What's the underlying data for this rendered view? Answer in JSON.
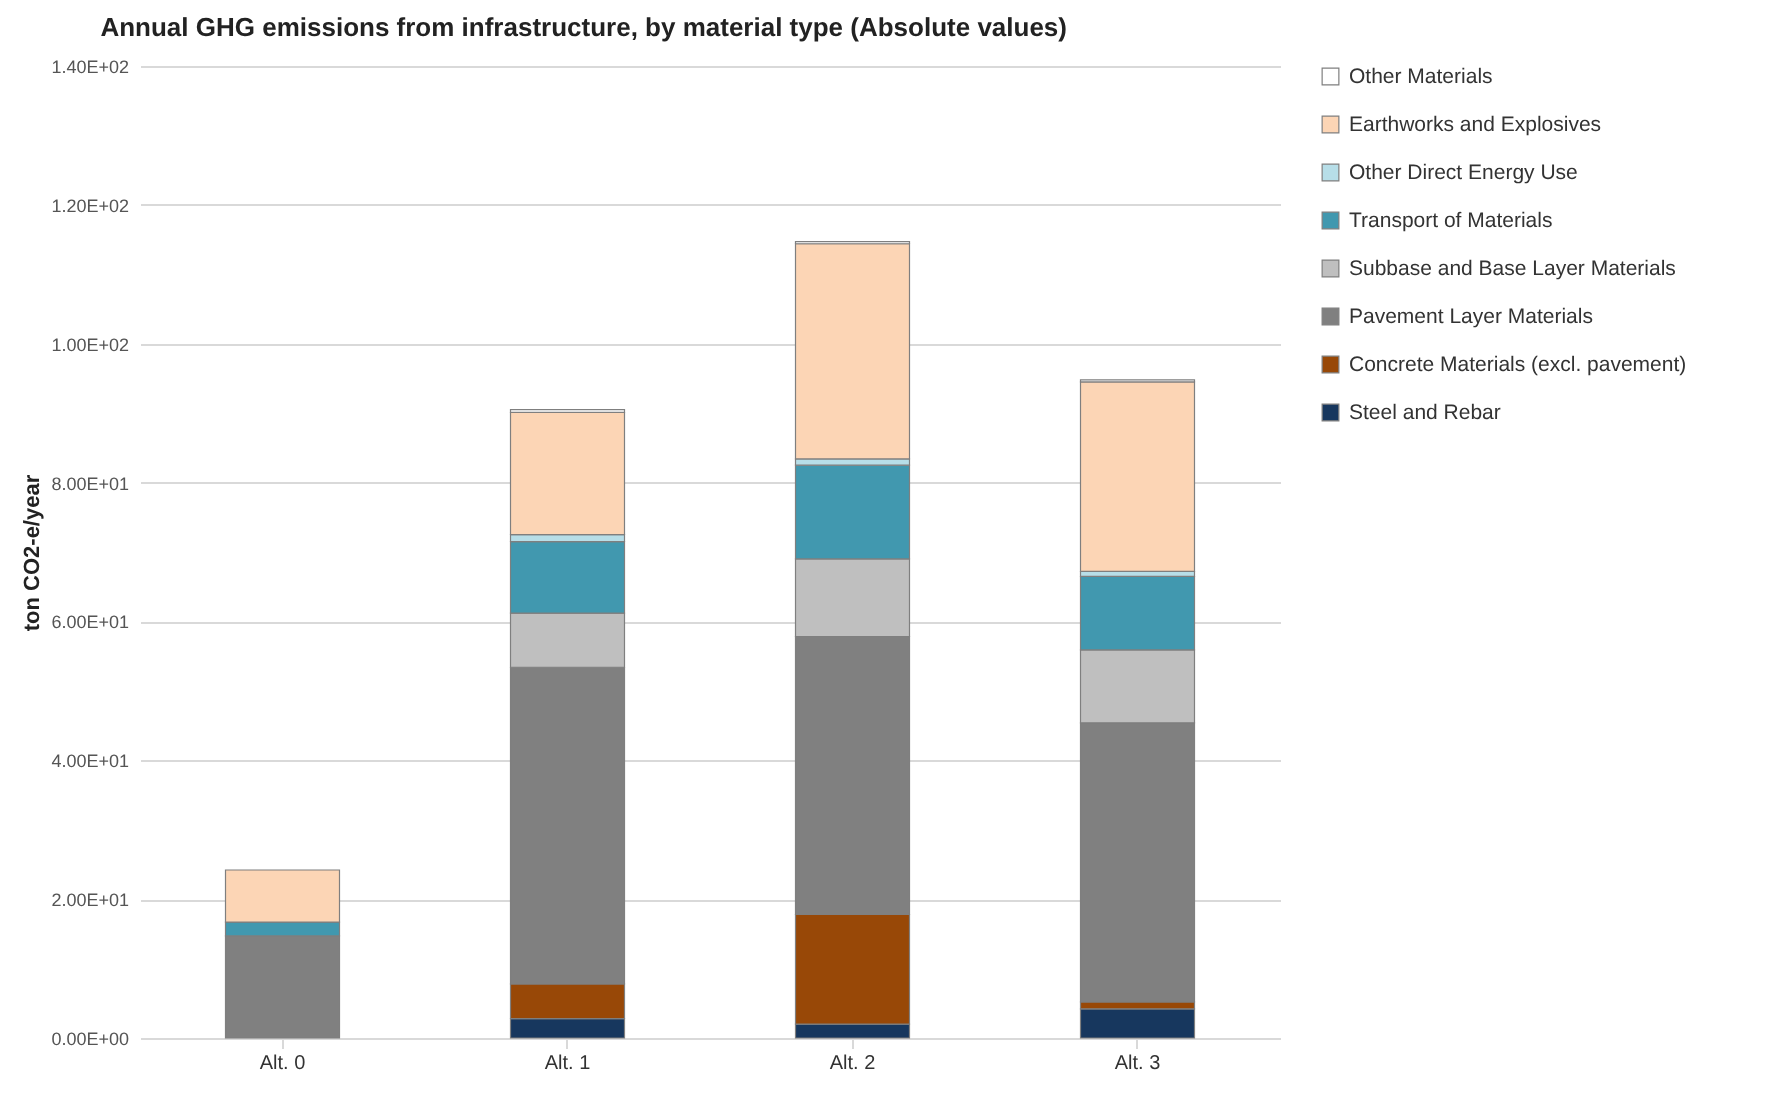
{
  "chart_data": {
    "type": "bar",
    "title": "Annual GHG emissions from infrastructure, by material type (Absolute values)",
    "ylabel": "ton CO2-e/year",
    "categories": [
      "Alt. 0",
      "Alt. 1",
      "Alt. 2",
      "Alt. 3"
    ],
    "stacked": true,
    "legend": "right",
    "grid": "y",
    "ylim": [
      0,
      140
    ],
    "yticks": [
      {
        "value": 0,
        "label": "0.00E+00"
      },
      {
        "value": 20,
        "label": "2.00E+01"
      },
      {
        "value": 40,
        "label": "4.00E+01"
      },
      {
        "value": 60,
        "label": "6.00E+01"
      },
      {
        "value": 80,
        "label": "8.00E+01"
      },
      {
        "value": 100,
        "label": "1.00E+02"
      },
      {
        "value": 120,
        "label": "1.20E+02"
      },
      {
        "value": 140,
        "label": "1.40E+02"
      }
    ],
    "series": [
      {
        "name": "Steel and Rebar",
        "color": "#17375e",
        "values": [
          0,
          2.8,
          2.0,
          4.2
        ]
      },
      {
        "name": "Concrete Materials (excl. pavement)",
        "color": "#984807",
        "values": [
          0,
          5.0,
          15.8,
          1.0
        ]
      },
      {
        "name": "Pavement Layer Materials",
        "color": "#808080",
        "values": [
          14.7,
          45.6,
          40.0,
          40.2
        ]
      },
      {
        "name": "Subbase and Base Layer Materials",
        "color": "#bfbfbf",
        "values": [
          0,
          7.8,
          11.2,
          10.5
        ]
      },
      {
        "name": "Transport of Materials",
        "color": "#4198af",
        "values": [
          2.0,
          10.3,
          13.5,
          10.6
        ]
      },
      {
        "name": "Other Direct Energy Use",
        "color": "#b7dee8",
        "values": [
          0,
          1.0,
          0.9,
          0.7
        ]
      },
      {
        "name": "Earthworks and Explosives",
        "color": "#fcd5b5",
        "values": [
          7.5,
          17.6,
          31.0,
          27.3
        ]
      },
      {
        "name": "Other Materials",
        "color": "#ffffff",
        "values": [
          0,
          0.4,
          0.3,
          0.3
        ]
      }
    ]
  }
}
